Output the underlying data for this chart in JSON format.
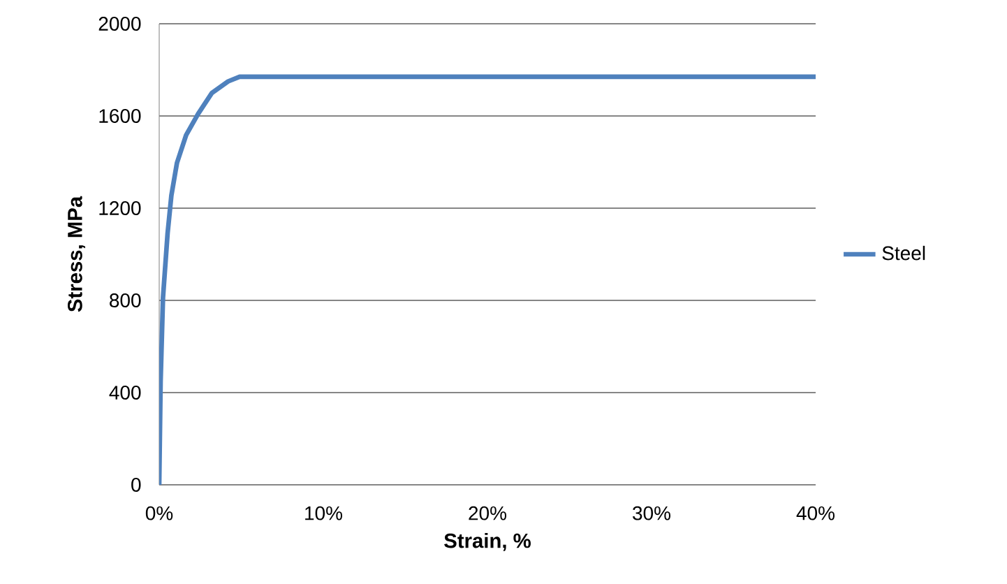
{
  "chart_data": {
    "type": "line",
    "xlabel": "Strain, %",
    "ylabel": "Stress, MPa",
    "series": [
      {
        "name": "Steel",
        "color": "#4f81bd",
        "x": [
          0,
          0.085,
          0.23,
          0.51,
          0.74,
          1.08,
          1.64,
          2.36,
          3.2,
          4.2,
          4.9,
          40
        ],
        "values": [
          0,
          448,
          812,
          1091,
          1255,
          1396,
          1517,
          1608,
          1699,
          1750,
          1770,
          1770
        ]
      }
    ],
    "xlim": [
      0,
      40
    ],
    "ylim": [
      0,
      2000
    ],
    "xticks": [
      {
        "value": 0,
        "label": "0%"
      },
      {
        "value": 10,
        "label": "10%"
      },
      {
        "value": 20,
        "label": "20%"
      },
      {
        "value": 30,
        "label": "30%"
      },
      {
        "value": 40,
        "label": "40%"
      }
    ],
    "yticks": [
      0,
      400,
      800,
      1200,
      1600,
      2000
    ],
    "grid": "y",
    "legend": "right",
    "marker": "none",
    "line_style": "solid"
  }
}
